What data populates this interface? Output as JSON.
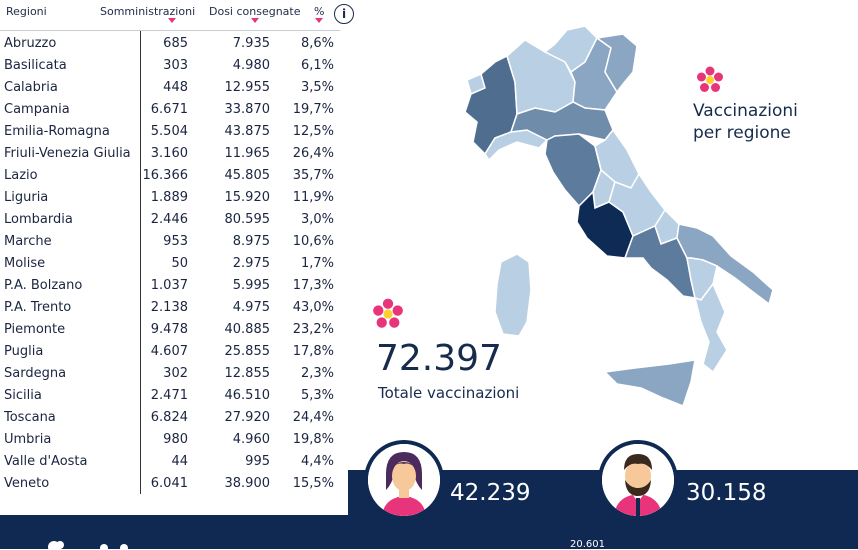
{
  "table": {
    "headers": {
      "region": "Regioni",
      "admin": "Somministrazioni",
      "doses": "Dosi consegnate",
      "pct": "%"
    },
    "info_icon": "i",
    "rows": [
      {
        "region": "Abruzzo",
        "admin": "685",
        "doses": "7.935",
        "pct": "8,6%"
      },
      {
        "region": "Basilicata",
        "admin": "303",
        "doses": "4.980",
        "pct": "6,1%"
      },
      {
        "region": "Calabria",
        "admin": "448",
        "doses": "12.955",
        "pct": "3,5%"
      },
      {
        "region": "Campania",
        "admin": "6.671",
        "doses": "33.870",
        "pct": "19,7%"
      },
      {
        "region": "Emilia-Romagna",
        "admin": "5.504",
        "doses": "43.875",
        "pct": "12,5%"
      },
      {
        "region": "Friuli-Venezia Giulia",
        "admin": "3.160",
        "doses": "11.965",
        "pct": "26,4%"
      },
      {
        "region": "Lazio",
        "admin": "16.366",
        "doses": "45.805",
        "pct": "35,7%"
      },
      {
        "region": "Liguria",
        "admin": "1.889",
        "doses": "15.920",
        "pct": "11,9%"
      },
      {
        "region": "Lombardia",
        "admin": "2.446",
        "doses": "80.595",
        "pct": "3,0%"
      },
      {
        "region": "Marche",
        "admin": "953",
        "doses": "8.975",
        "pct": "10,6%"
      },
      {
        "region": "Molise",
        "admin": "50",
        "doses": "2.975",
        "pct": "1,7%"
      },
      {
        "region": "P.A. Bolzano",
        "admin": "1.037",
        "doses": "5.995",
        "pct": "17,3%"
      },
      {
        "region": "P.A. Trento",
        "admin": "2.138",
        "doses": "4.975",
        "pct": "43,0%"
      },
      {
        "region": "Piemonte",
        "admin": "9.478",
        "doses": "40.885",
        "pct": "23,2%"
      },
      {
        "region": "Puglia",
        "admin": "4.607",
        "doses": "25.855",
        "pct": "17,8%"
      },
      {
        "region": "Sardegna",
        "admin": "302",
        "doses": "12.855",
        "pct": "2,3%"
      },
      {
        "region": "Sicilia",
        "admin": "2.471",
        "doses": "46.510",
        "pct": "5,3%"
      },
      {
        "region": "Toscana",
        "admin": "6.824",
        "doses": "27.920",
        "pct": "24,4%"
      },
      {
        "region": "Umbria",
        "admin": "980",
        "doses": "4.960",
        "pct": "19,8%"
      },
      {
        "region": "Valle d'Aosta",
        "admin": "44",
        "doses": "995",
        "pct": "4,4%"
      },
      {
        "region": "Veneto",
        "admin": "6.041",
        "doses": "38.900",
        "pct": "15,5%"
      }
    ]
  },
  "map": {
    "title_line1": "Vaccinazioni",
    "title_line2": "per regione",
    "icon": "flower-icon"
  },
  "total": {
    "value": "72.397",
    "label": "Totale vaccinazioni",
    "icon": "flower-icon"
  },
  "gender": {
    "female_count": "42.239",
    "male_count": "30.158",
    "female_icon": "woman-avatar-icon",
    "male_icon": "man-avatar-icon"
  },
  "footer": {
    "partial_number": "20.601"
  },
  "colors": {
    "navy": "#0f2952",
    "accent_pink": "#e8347a",
    "map_dark": "#0d2b55",
    "map_mid": "#5d7b9c",
    "map_light": "#b9cfe3"
  }
}
